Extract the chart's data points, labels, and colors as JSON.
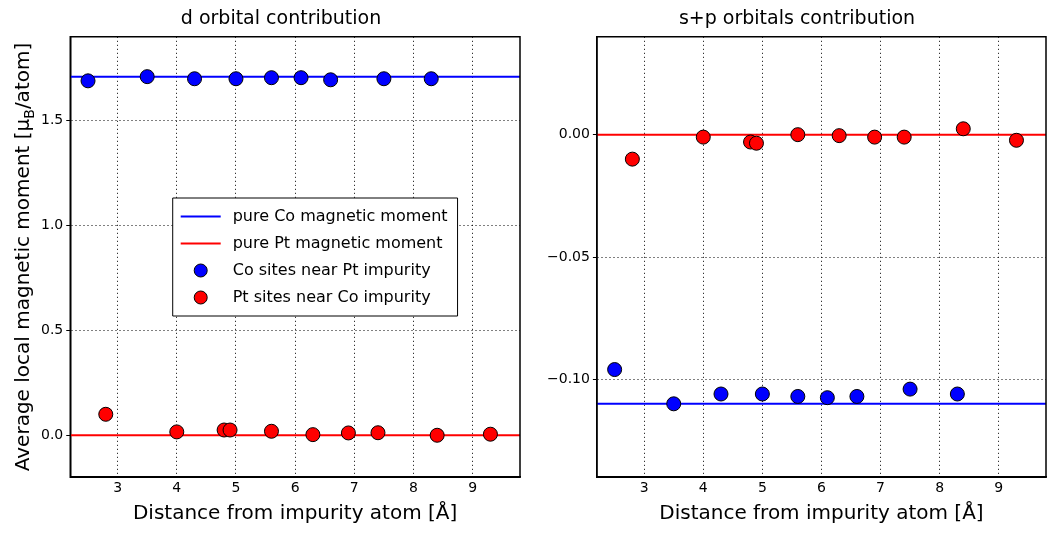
{
  "chart_data": [
    {
      "type": "scatter",
      "title": "d orbital contribution",
      "xlabel": "Distance from impurity atom [Å]",
      "ylabel": "Average local magnetic moment [μ$_{B}$/atom]",
      "xlim": [
        2.2,
        9.8
      ],
      "xticks": [
        3,
        4,
        5,
        6,
        7,
        8,
        9
      ],
      "ylim": [
        -0.2,
        1.9
      ],
      "yticks": [
        {
          "value": 0,
          "label": "0.0"
        },
        {
          "value": 0.5,
          "label": "0.5"
        },
        {
          "value": 1,
          "label": "1.0"
        },
        {
          "value": 1.5,
          "label": "1.5"
        }
      ],
      "grid": true,
      "legend": "center",
      "series": [
        {
          "type": "line",
          "name": "pure Co magnetic moment",
          "color": "#0000ff",
          "x": [
            2.2,
            9.8
          ],
          "values": [
            1.71,
            1.71
          ]
        },
        {
          "type": "line",
          "name": "pure Pt magnetic moment",
          "color": "#ff0000",
          "x": [
            2.2,
            9.8
          ],
          "values": [
            0,
            0
          ]
        },
        {
          "name": "Co sites near Pt impurity",
          "marker": "circle",
          "color": "#0000ff",
          "x": [
            2.5,
            3.5,
            4.3,
            5.0,
            5.6,
            6.1,
            6.6,
            7.5,
            8.3
          ],
          "values": [
            1.69,
            1.71,
            1.7,
            1.7,
            1.705,
            1.705,
            1.695,
            1.7,
            1.7
          ]
        },
        {
          "name": "Pt sites near Co impurity",
          "marker": "circle",
          "color": "#ff0000",
          "x": [
            2.8,
            4.0,
            4.8,
            4.9,
            5.6,
            6.3,
            6.9,
            7.4,
            8.4,
            9.3
          ],
          "values": [
            0.1,
            0.016,
            0.025,
            0.025,
            0.019,
            0.003,
            0.011,
            0.012,
            0.0,
            0.005
          ]
        }
      ]
    },
    {
      "type": "scatter",
      "title": "s+p orbitals contribution",
      "xlabel": "Distance from impurity atom [Å]",
      "xlim": [
        2.2,
        9.8
      ],
      "xticks": [
        3,
        4,
        5,
        6,
        7,
        8,
        9
      ],
      "ylim": [
        -0.14,
        0.04
      ],
      "yticks": [
        {
          "value": -0.1,
          "label": "−0.10"
        },
        {
          "value": -0.05,
          "label": "−0.05"
        },
        {
          "value": 0,
          "label": "0.00"
        }
      ],
      "grid": true,
      "series": [
        {
          "type": "line",
          "color": "#0000ff",
          "x": [
            2.2,
            9.8
          ],
          "values": [
            -0.11,
            -0.11
          ]
        },
        {
          "type": "line",
          "color": "#ff0000",
          "x": [
            2.2,
            9.8
          ],
          "values": [
            0,
            0
          ]
        },
        {
          "marker": "circle",
          "color": "#0000ff",
          "x": [
            2.5,
            3.5,
            4.3,
            5.0,
            5.6,
            6.1,
            6.6,
            7.5,
            8.3
          ],
          "values": [
            -0.096,
            -0.11,
            -0.106,
            -0.106,
            -0.107,
            -0.1075,
            -0.107,
            -0.104,
            -0.106
          ]
        },
        {
          "marker": "circle",
          "color": "#ff0000",
          "x": [
            2.8,
            4.0,
            4.8,
            4.9,
            5.6,
            6.3,
            6.9,
            7.4,
            8.4,
            9.3
          ],
          "values": [
            -0.01,
            -0.001,
            -0.003,
            -0.0035,
            0.0,
            -0.0004,
            -0.001,
            -0.001,
            0.0024,
            -0.0023
          ]
        }
      ]
    }
  ]
}
